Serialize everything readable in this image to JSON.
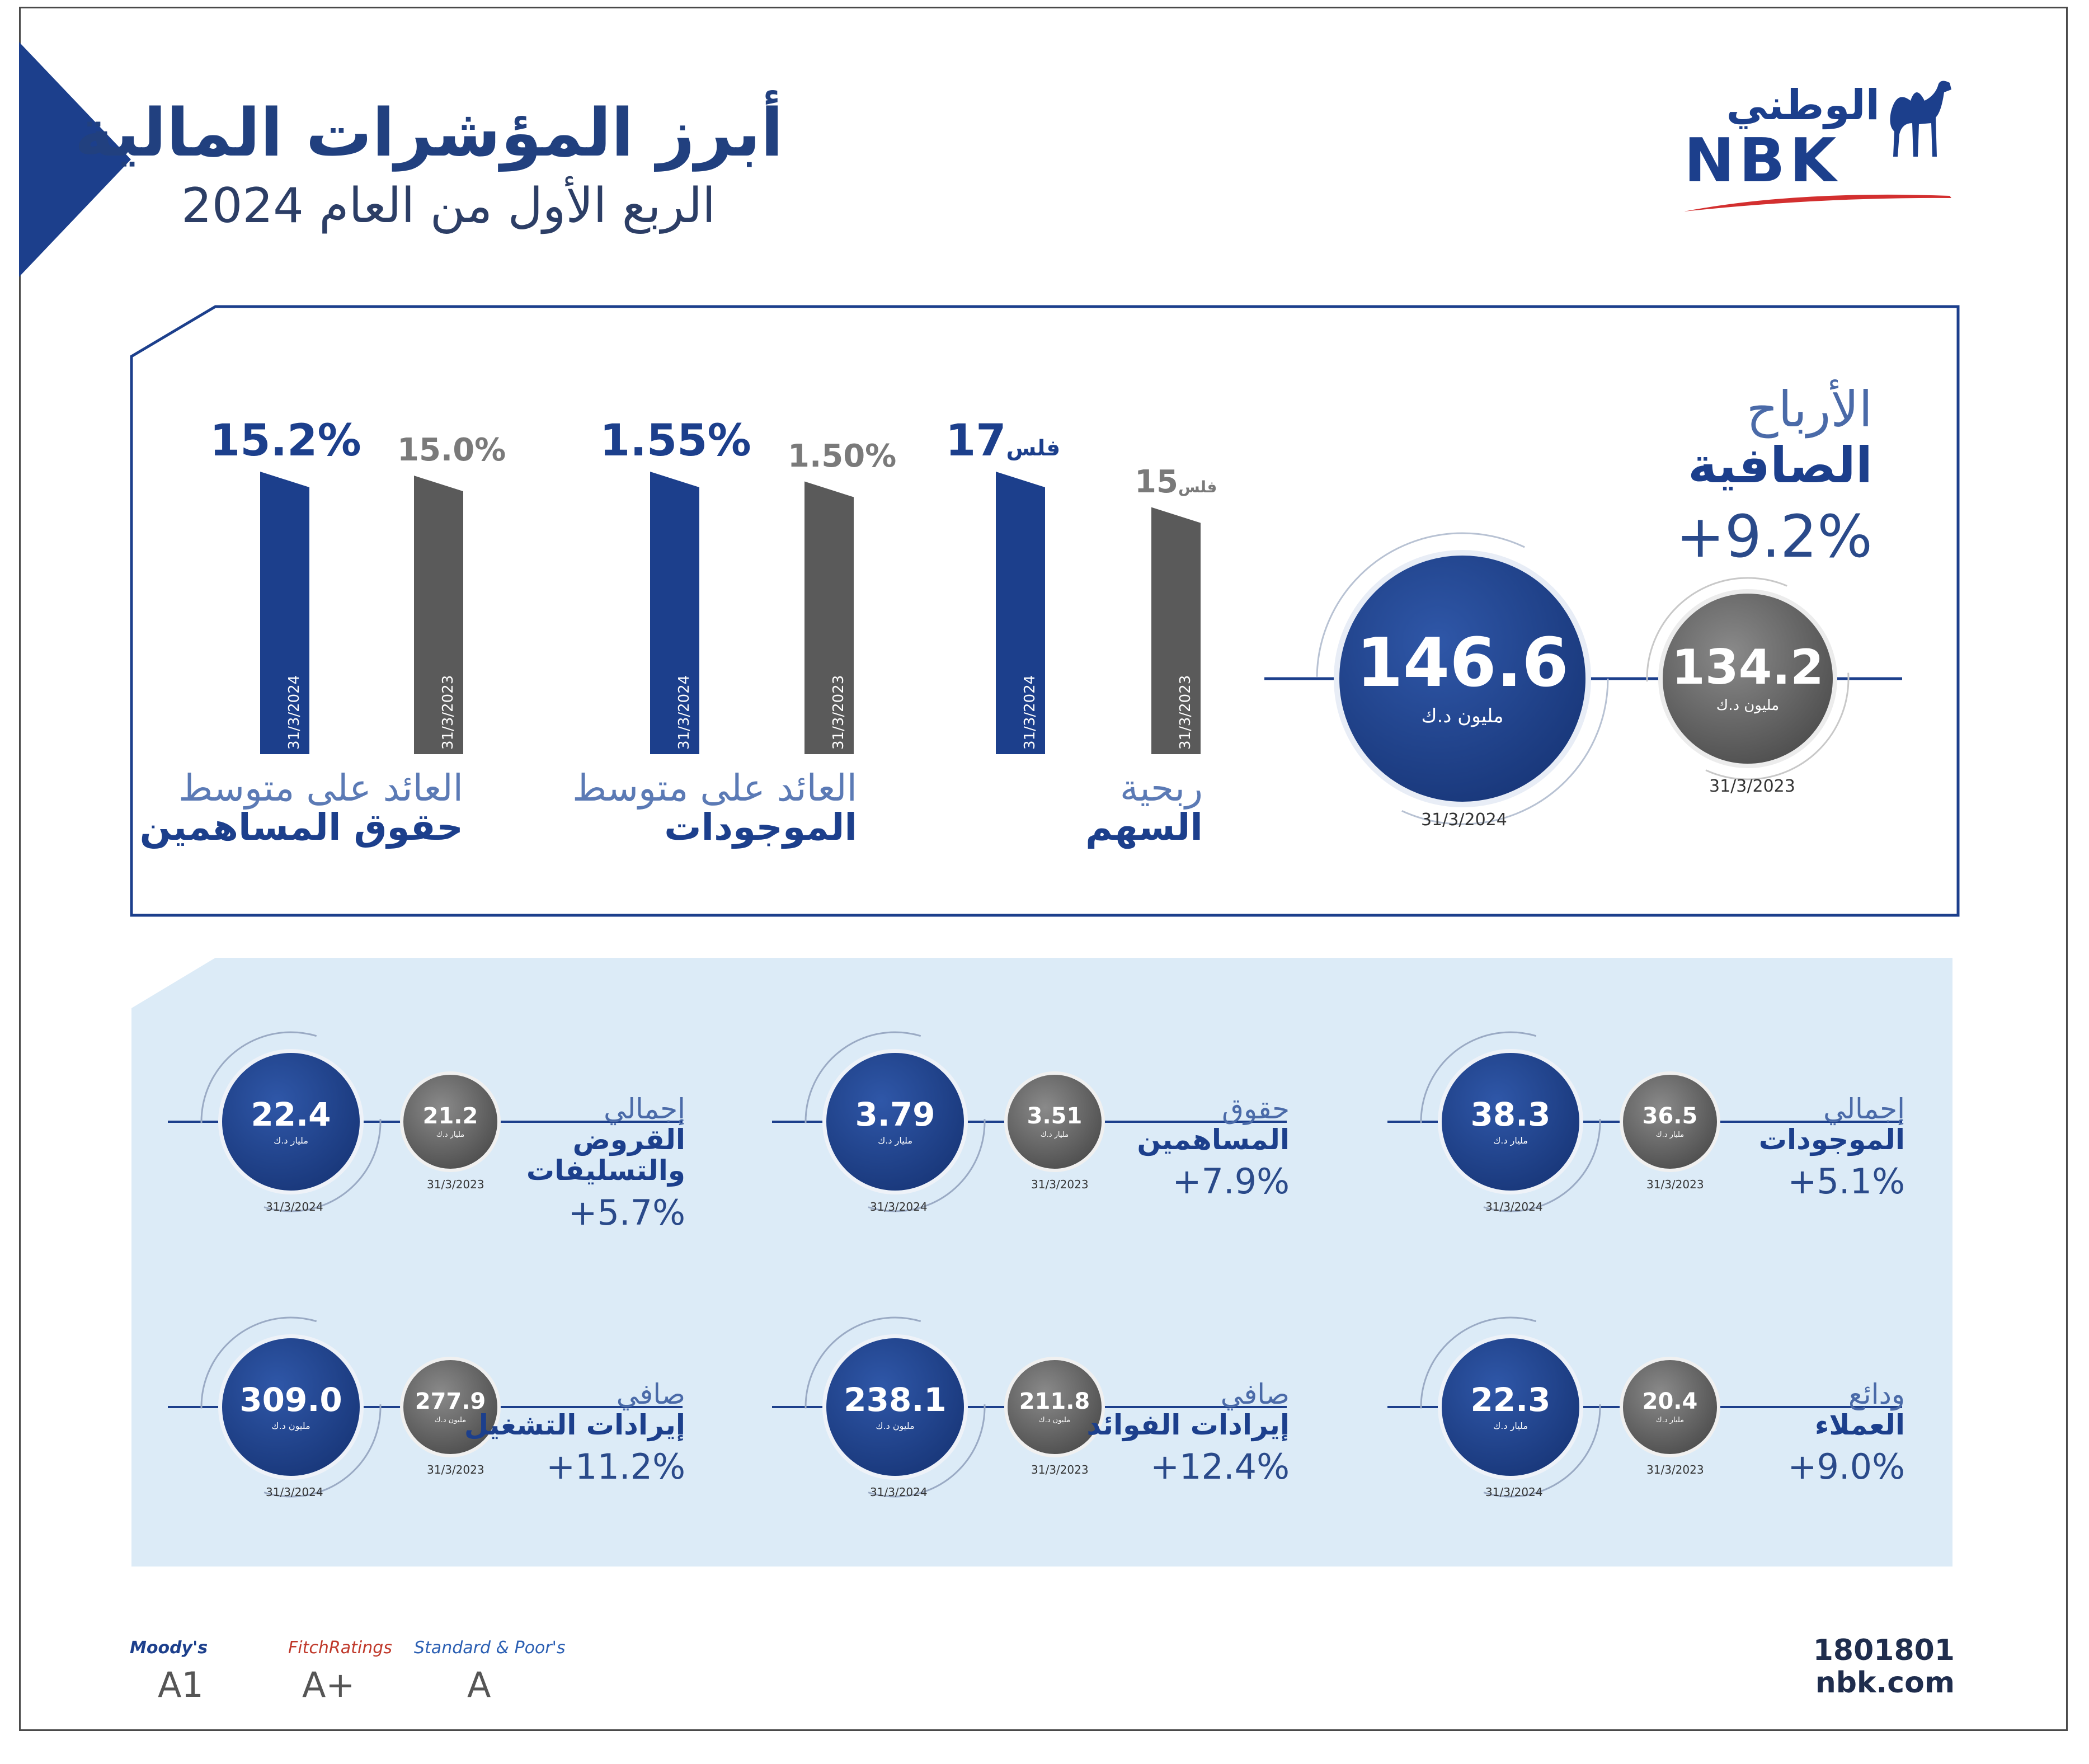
{
  "header": {
    "title": "أبرز المؤشرات المالية",
    "subtitle": "الربع الأول من العام 2024"
  },
  "logo": {
    "arabic": "الوطني",
    "english": "NBK"
  },
  "net_profit": {
    "label_line1": "الأرباح",
    "label_line2": "الصافية",
    "growth": "+9.2%",
    "current": {
      "value": "146.6",
      "unit": "مليون د.ك",
      "date": "31/3/2024"
    },
    "previous": {
      "value": "134.2",
      "unit": "مليون د.ك",
      "date": "31/3/2023"
    }
  },
  "chart_data": {
    "type": "bar",
    "groups": [
      {
        "label_line1": "ربحية",
        "label_line2": "السهم",
        "bars": [
          {
            "date": "31/3/2024",
            "value": 17,
            "label": "17",
            "unit": "فلس",
            "color": "#1c3f8c"
          },
          {
            "date": "31/3/2023",
            "value": 15,
            "label": "15",
            "unit": "فلس",
            "color": "#5a5a5a"
          }
        ]
      },
      {
        "label_line1": "العائد على متوسط",
        "label_line2": "الموجودات",
        "bars": [
          {
            "date": "31/3/2024",
            "value": 1.55,
            "label": "1.55%",
            "color": "#1c3f8c"
          },
          {
            "date": "31/3/2023",
            "value": 1.5,
            "label": "1.50%",
            "color": "#5a5a5a"
          }
        ]
      },
      {
        "label_line1": "العائد على متوسط",
        "label_line2": "حقوق المساهمين",
        "bars": [
          {
            "date": "31/3/2024",
            "value": 15.2,
            "label": "15.2%",
            "color": "#1c3f8c"
          },
          {
            "date": "31/3/2023",
            "value": 15.0,
            "label": "15.0%",
            "color": "#5a5a5a"
          }
        ]
      }
    ]
  },
  "kpis": [
    {
      "id": "assets",
      "line1": "إجمالي",
      "line2": "الموجودات",
      "line3": "",
      "growth": "+5.1%",
      "current": {
        "value": "38.3",
        "unit": "مليار د.ك",
        "date": "31/3/2024"
      },
      "previous": {
        "value": "36.5",
        "unit": "مليار د.ك",
        "date": "31/3/2023"
      }
    },
    {
      "id": "equity",
      "line1": "حقوق",
      "line2": "المساهمين",
      "line3": "",
      "growth": "+7.9%",
      "current": {
        "value": "3.79",
        "unit": "مليار د.ك",
        "date": "31/3/2024"
      },
      "previous": {
        "value": "3.51",
        "unit": "مليار د.ك",
        "date": "31/3/2023"
      }
    },
    {
      "id": "loans",
      "line1": "إجمالي",
      "line2": "القروض",
      "line3": "والتسليفات",
      "growth": "+5.7%",
      "current": {
        "value": "22.4",
        "unit": "مليار د.ك",
        "date": "31/3/2024"
      },
      "previous": {
        "value": "21.2",
        "unit": "مليار د.ك",
        "date": "31/3/2023"
      }
    },
    {
      "id": "deposits",
      "line1": "ودائع",
      "line2": "العملاء",
      "line3": "",
      "growth": "+9.0%",
      "current": {
        "value": "22.3",
        "unit": "مليار د.ك",
        "date": "31/3/2024"
      },
      "previous": {
        "value": "20.4",
        "unit": "مليار د.ك",
        "date": "31/3/2023"
      }
    },
    {
      "id": "interest",
      "line1": "صافي",
      "line2": "إيرادات الفوائد",
      "line3": "",
      "growth": "+12.4%",
      "current": {
        "value": "238.1",
        "unit": "مليون د.ك",
        "date": "31/3/2024"
      },
      "previous": {
        "value": "211.8",
        "unit": "مليون د.ك",
        "date": "31/3/2023"
      }
    },
    {
      "id": "operating",
      "line1": "صافي",
      "line2": "إيرادات التشغيل",
      "line3": "",
      "growth": "+11.2%",
      "current": {
        "value": "309.0",
        "unit": "مليون د.ك",
        "date": "31/3/2024"
      },
      "previous": {
        "value": "277.9",
        "unit": "مليون د.ك",
        "date": "31/3/2023"
      }
    }
  ],
  "ratings": [
    {
      "agency": "Moody's",
      "grade": "A1",
      "color": "#1c3f8c"
    },
    {
      "agency": "FitchRatings",
      "grade": "A+",
      "color": "#c0392b"
    },
    {
      "agency": "Standard & Poor's",
      "grade": "A",
      "color": "#2b5fb3"
    }
  ],
  "contact": {
    "phone": "1801801",
    "web": "nbk.com"
  },
  "colors": {
    "navy": "#1c3f8c",
    "gray": "#5a5a5a",
    "light_bg": "#dcebf7"
  }
}
